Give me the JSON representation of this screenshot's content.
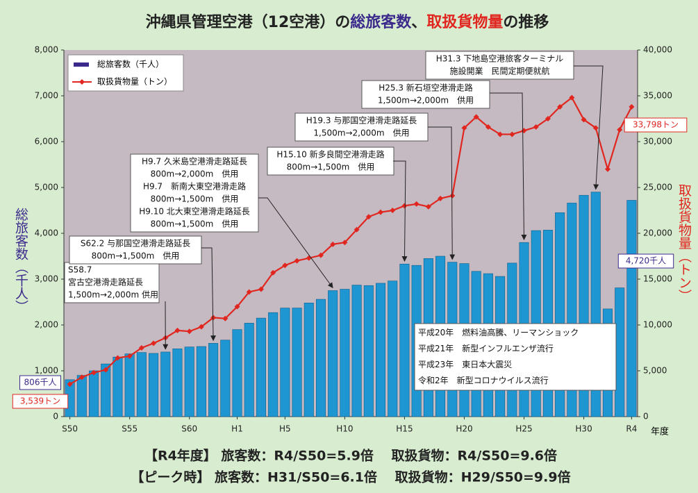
{
  "chart_data": {
    "type": "bar_line",
    "title_parts": [
      {
        "text": "沖縄県管理空港（12空港）の",
        "color": "#222222"
      },
      {
        "text": "総旅客数",
        "color": "#3b2a8c"
      },
      {
        "text": "、",
        "color": "#222222"
      },
      {
        "text": "取扱貨物量",
        "color": "#e0261f"
      },
      {
        "text": "の推移",
        "color": "#222222"
      }
    ],
    "categories": [
      "S50",
      null,
      null,
      null,
      null,
      "S55",
      null,
      null,
      null,
      null,
      "S60",
      null,
      null,
      null,
      "H1",
      null,
      null,
      null,
      "H5",
      null,
      null,
      null,
      null,
      "H10",
      null,
      null,
      null,
      null,
      "H15",
      null,
      null,
      null,
      null,
      "H20",
      null,
      null,
      null,
      null,
      "H25",
      null,
      null,
      null,
      null,
      "H30",
      null,
      null,
      null,
      "R4"
    ],
    "x_label": "年度",
    "y_label": "総旅客数（千人）",
    "y2_label": "取扱貨物量（トン）",
    "ylim": [
      0,
      8000
    ],
    "yticks": [
      0,
      {
        "value": 1000,
        "label": "1,000"
      },
      {
        "value": 2000,
        "label": "2,000"
      },
      {
        "value": 3000,
        "label": "3,000"
      },
      {
        "value": 4000,
        "label": "4,000"
      },
      {
        "value": 5000,
        "label": "5,000"
      },
      {
        "value": 6000,
        "label": "6,000"
      },
      {
        "value": 7000,
        "label": "7,000"
      },
      {
        "value": 8000,
        "label": "8,000"
      }
    ],
    "y2lim": [
      0,
      40000
    ],
    "y2ticks": [
      0,
      {
        "value": 5000,
        "label": "5,000"
      },
      {
        "value": 10000,
        "label": "10,000"
      },
      {
        "value": 15000,
        "label": "15,000"
      },
      {
        "value": 20000,
        "label": "20,000"
      },
      {
        "value": 25000,
        "label": "25,000"
      },
      {
        "value": 30000,
        "label": "30,000"
      },
      {
        "value": 35000,
        "label": "35,000"
      },
      {
        "value": 40000,
        "label": "40,000"
      }
    ],
    "legend": "upper left",
    "series": [
      {
        "name": "総旅客数（千人）",
        "type": "bar",
        "color": "#1e96d2",
        "label_color": "#3b2a8c",
        "values": [
          806,
          900,
          1000,
          1150,
          1300,
          1370,
          1400,
          1380,
          1410,
          1480,
          1520,
          1530,
          1600,
          1670,
          1900,
          2040,
          2150,
          2270,
          2370,
          2370,
          2480,
          2560,
          2750,
          2780,
          2870,
          2860,
          2910,
          2960,
          3330,
          3300,
          3450,
          3500,
          3370,
          3340,
          3170,
          3120,
          3060,
          3350,
          3800,
          4060,
          4070,
          4450,
          4660,
          4830,
          4900,
          2350,
          2810,
          4720
        ],
        "value_labels": [
          "806千人",
          null,
          null,
          null,
          null,
          null,
          null,
          null,
          null,
          null,
          null,
          null,
          null,
          null,
          null,
          null,
          null,
          null,
          null,
          null,
          null,
          null,
          null,
          null,
          null,
          null,
          null,
          null,
          null,
          null,
          null,
          null,
          null,
          null,
          null,
          null,
          null,
          null,
          null,
          null,
          null,
          null,
          null,
          null,
          null,
          null,
          null,
          "4,720千人"
        ]
      },
      {
        "name": "取扱貨物量（トン）",
        "type": "line",
        "axis": "y2",
        "color": "#e0261f",
        "label_color": "#e0261f",
        "values": [
          3539,
          4300,
          4800,
          5100,
          6400,
          6600,
          7500,
          8000,
          8600,
          9400,
          9300,
          9800,
          10800,
          10700,
          12000,
          13600,
          13900,
          15700,
          16500,
          17000,
          17300,
          17600,
          18800,
          19000,
          20400,
          21800,
          22300,
          22500,
          23000,
          23200,
          22900,
          23800,
          24100,
          31500,
          32700,
          31600,
          30800,
          30800,
          31200,
          31600,
          32500,
          33800,
          34800,
          32400,
          31500,
          27000,
          31300,
          33798
        ],
        "value_labels": [
          "3,539トン",
          null,
          null,
          null,
          null,
          null,
          null,
          null,
          null,
          null,
          null,
          null,
          null,
          null,
          null,
          null,
          null,
          null,
          null,
          null,
          null,
          null,
          null,
          null,
          null,
          null,
          null,
          null,
          null,
          null,
          null,
          null,
          null,
          null,
          null,
          null,
          null,
          null,
          null,
          null,
          null,
          null,
          null,
          null,
          null,
          null,
          null,
          "33,798トン"
        ]
      }
    ],
    "annotations": [
      {
        "lines": [
          "S58.7",
          "宮古空港滑走路延長",
          "1,500m→2,000m 供用"
        ]
      },
      {
        "lines": [
          "S62.2 与那国空港滑走路延長",
          "800m→1,500m　供用"
        ]
      },
      {
        "lines": [
          "H9.7 久米島空港滑走路延長",
          "800m→2,000m　供用",
          "H9.7　新南大東空港滑走路",
          "800m→1,500m　供用",
          "H9.10 北大東空港滑走路延長",
          "800m→1,500m　供用"
        ]
      },
      {
        "lines": [
          "H15.10 新多良間空港滑走路",
          "800m→1,500m　供用"
        ]
      },
      {
        "lines": [
          "H19.3 与那国空港滑走路延長",
          "1,500m→2,000m　供用"
        ]
      },
      {
        "lines": [
          "H25.3 新石垣空港滑走路",
          "1,500m→2,000m　供用"
        ]
      },
      {
        "lines": [
          "H31.3 下地島空港旅客ターミナル",
          "施設開業　民間定期便就航"
        ]
      },
      {
        "lines": [
          "平成20年　燃料油高騰、リーマンショック",
          "平成21年　新型インフルエンザ流行",
          "平成23年　東日本大震災",
          "令和2年　新型コロナウイルス流行"
        ]
      }
    ],
    "footer": [
      "【R4年度】 旅客数：R4/S50=5.9倍　 取扱貨物：R4/S50=9.6倍",
      "【ピーク時】 旅客数：H31/S50=6.1倍　 取扱貨物：H29/S50=9.9倍"
    ]
  }
}
